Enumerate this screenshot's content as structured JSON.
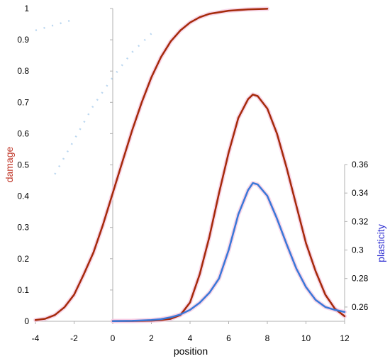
{
  "chart_data": {
    "type": "line",
    "xlabel": "position",
    "ylabel_left": "damage",
    "ylabel_right": "plasticity",
    "xlim": [
      -4,
      12
    ],
    "ylim_left": [
      0,
      1
    ],
    "ylim_right": [
      0.25,
      0.36
    ],
    "x_ticks": [
      -4,
      -2,
      0,
      2,
      4,
      6,
      8,
      10,
      12
    ],
    "y_left_ticks": [
      0,
      0.1,
      0.2,
      0.3,
      0.4,
      0.5,
      0.6,
      0.7,
      0.8,
      0.9,
      1
    ],
    "y_right_ticks": [
      0.26,
      0.28,
      0.3,
      0.32,
      0.34,
      0.36
    ],
    "grid": false,
    "legend": "none",
    "colors": {
      "damage": "#a52a0a",
      "plasticity": "#3a78d8",
      "ylabel_left": "#c0392b",
      "ylabel_right": "#2a2ad0",
      "axis": "#b0b0b0"
    },
    "series": [
      {
        "axis": "left",
        "color": "#a52a0a",
        "points": [
          [
            -4,
            0.004
          ],
          [
            -3.5,
            0.008
          ],
          [
            -3,
            0.02
          ],
          [
            -2.5,
            0.045
          ],
          [
            -2,
            0.085
          ],
          [
            -1.5,
            0.15
          ],
          [
            -1,
            0.22
          ],
          [
            -0.5,
            0.31
          ],
          [
            0,
            0.41
          ],
          [
            0.5,
            0.51
          ],
          [
            1,
            0.61
          ],
          [
            1.5,
            0.7
          ],
          [
            2,
            0.78
          ],
          [
            2.5,
            0.845
          ],
          [
            3,
            0.895
          ],
          [
            3.5,
            0.93
          ],
          [
            4,
            0.955
          ],
          [
            4.5,
            0.972
          ],
          [
            5,
            0.983
          ],
          [
            6,
            0.993
          ],
          [
            7,
            0.997
          ],
          [
            8,
            0.999
          ]
        ]
      },
      {
        "axis": "left",
        "color": "#a52a0a",
        "points": [
          [
            0,
            0.001
          ],
          [
            1,
            0.001
          ],
          [
            2,
            0.002
          ],
          [
            2.5,
            0.004
          ],
          [
            3,
            0.008
          ],
          [
            3.5,
            0.02
          ],
          [
            4,
            0.06
          ],
          [
            4.5,
            0.15
          ],
          [
            5,
            0.27
          ],
          [
            5.5,
            0.41
          ],
          [
            6,
            0.54
          ],
          [
            6.5,
            0.65
          ],
          [
            7,
            0.71
          ],
          [
            7.25,
            0.725
          ],
          [
            7.5,
            0.72
          ],
          [
            8,
            0.68
          ],
          [
            8.5,
            0.6
          ],
          [
            9,
            0.49
          ],
          [
            9.5,
            0.37
          ],
          [
            10,
            0.25
          ],
          [
            10.5,
            0.16
          ],
          [
            11,
            0.085
          ],
          [
            11.5,
            0.04
          ],
          [
            12,
            0.016
          ]
        ]
      },
      {
        "axis": "right",
        "color": "#3a78d8",
        "points": [
          [
            0,
            0.2501
          ],
          [
            1,
            0.2503
          ],
          [
            2,
            0.2509
          ],
          [
            2.5,
            0.2515
          ],
          [
            3,
            0.2528
          ],
          [
            3.5,
            0.2548
          ],
          [
            4,
            0.258
          ],
          [
            4.5,
            0.263
          ],
          [
            5,
            0.27
          ],
          [
            5.5,
            0.28
          ],
          [
            6,
            0.3
          ],
          [
            6.5,
            0.325
          ],
          [
            7,
            0.342
          ],
          [
            7.25,
            0.347
          ],
          [
            7.5,
            0.346
          ],
          [
            8,
            0.338
          ],
          [
            8.5,
            0.322
          ],
          [
            9,
            0.304
          ],
          [
            9.5,
            0.287
          ],
          [
            10,
            0.274
          ],
          [
            10.5,
            0.265
          ],
          [
            11,
            0.26
          ],
          [
            11.5,
            0.258
          ],
          [
            12,
            0.2565
          ]
        ]
      }
    ],
    "watermark_fragments": [
      {
        "axis": "left",
        "points": [
          [
            -4,
            0.93
          ],
          [
            -2,
            0.965
          ]
        ]
      },
      {
        "axis": "left",
        "points": [
          [
            -3,
            0.47
          ],
          [
            -2,
            0.58
          ],
          [
            -1,
            0.69
          ],
          [
            0,
            0.78
          ],
          [
            1,
            0.86
          ],
          [
            2,
            0.92
          ]
        ]
      }
    ]
  }
}
